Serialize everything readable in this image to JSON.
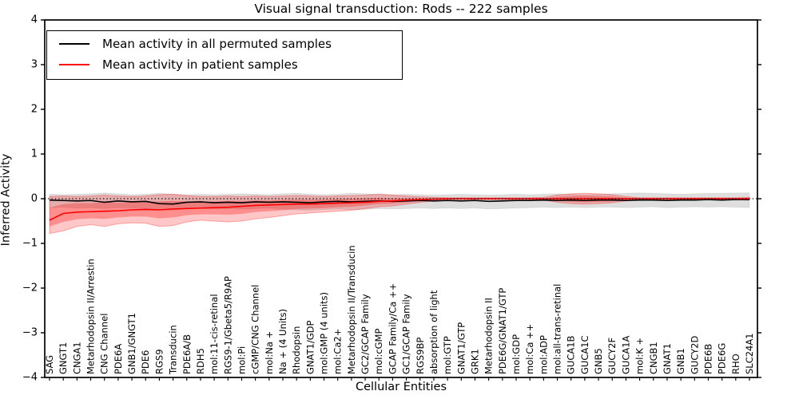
{
  "legend": {
    "permuted": "Mean activity in all permuted samples",
    "patient": "Mean activity in patient samples"
  },
  "chart_data": {
    "type": "line",
    "title": "Visual signal transduction: Rods -- 222 samples",
    "xlabel": "Cellular Entities",
    "ylabel": "Inferred Activity",
    "ylim": [
      -4,
      4
    ],
    "yticks": [
      4,
      3,
      2,
      1,
      0,
      -1,
      -2,
      -3,
      -4
    ],
    "grid": false,
    "legend_position": "upper left",
    "zero_line": {
      "style": "dotted",
      "color": "#000000"
    },
    "colors": {
      "permuted_line": "#000000",
      "patient_line": "#ff0000",
      "permuted_band_fill": "rgba(0,0,0,0.13)",
      "permuted_band_edge": "rgba(0,0,0,0.07)",
      "patient_band_outer_fill": "rgba(255,0,0,0.22)",
      "patient_band_outer_edge": "rgba(255,0,0,0.30)",
      "patient_band_inner_fill": "rgba(255,0,0,0.28)"
    },
    "categories": [
      "SAG",
      "GNGT1",
      "CNGA1",
      "Metarhodopsin II/Arrestin",
      "CNG Channel",
      "PDE6A",
      "GNB1/GNGT1",
      "PDE6",
      "RGS9",
      "Transducin",
      "PDE6A/B",
      "RDH5",
      "mol:11-cis-retinal",
      "RGS9-1/Gbeta5/R9AP",
      "mol:Pi",
      "cGMP/CNG Channel",
      "mol:Na +",
      "Na + (4 Units)",
      "Rhodopsin",
      "GNAT1/GDP",
      "mol:GMP (4 units)",
      "mol:Ca2+",
      "Metarhodopsin II/Transducin",
      "GC2/GCAP Family",
      "mol:cGMP",
      "GCAP Family/Ca ++",
      "GC1/GCAP Family",
      "RGS9BP",
      "absorption of light",
      "mol:GTP",
      "GNAT1/GTP",
      "GRK1",
      "Metarhodopsin II",
      "PDE6G/GNAT1/GTP",
      "mol:GDP",
      "mol:Ca ++",
      "mol:ADP",
      "mol:all-trans-retinal",
      "GUCA1B",
      "GUCA1C",
      "GNB5",
      "GUCY2F",
      "GUCA1A",
      "mol:K +",
      "CNGB1",
      "GNAT1",
      "GNB1",
      "GUCY2D",
      "PDE6B",
      "PDE6G",
      "RHO",
      "SLC24A1"
    ],
    "series": [
      {
        "name": "Mean activity in all permuted samples",
        "color": "#000000",
        "values": [
          -0.03,
          -0.04,
          -0.05,
          -0.04,
          -0.08,
          -0.05,
          -0.07,
          -0.06,
          -0.11,
          -0.12,
          -0.08,
          -0.07,
          -0.09,
          -0.08,
          -0.09,
          -0.07,
          -0.08,
          -0.07,
          -0.08,
          -0.09,
          -0.07,
          -0.06,
          -0.07,
          -0.06,
          -0.05,
          -0.06,
          -0.05,
          -0.04,
          -0.05,
          -0.04,
          -0.05,
          -0.04,
          -0.06,
          -0.05,
          -0.04,
          -0.04,
          -0.03,
          -0.04,
          -0.03,
          -0.04,
          -0.03,
          -0.03,
          -0.04,
          -0.03,
          -0.03,
          -0.04,
          -0.03,
          -0.03,
          -0.02,
          -0.03,
          -0.02,
          -0.02
        ]
      },
      {
        "name": "Mean activity in patient samples",
        "color": "#ff0000",
        "values": [
          -0.48,
          -0.33,
          -0.3,
          -0.29,
          -0.28,
          -0.27,
          -0.25,
          -0.24,
          -0.25,
          -0.23,
          -0.22,
          -0.21,
          -0.2,
          -0.19,
          -0.17,
          -0.15,
          -0.14,
          -0.13,
          -0.12,
          -0.12,
          -0.11,
          -0.1,
          -0.09,
          -0.08,
          -0.06,
          -0.05,
          -0.03,
          -0.02,
          -0.01,
          0,
          0,
          0,
          0,
          0,
          0,
          0,
          0,
          0,
          0,
          0,
          0,
          0,
          0,
          0,
          0,
          0,
          0,
          0,
          0,
          0,
          0,
          0
        ]
      }
    ],
    "bands": [
      {
        "name": "permuted-range",
        "hi": [
          0.1,
          0.09,
          0.1,
          0.11,
          0.13,
          0.11,
          0.09,
          0.1,
          0.12,
          0.1,
          0.09,
          0.1,
          0.09,
          0.1,
          0.11,
          0.1,
          0.09,
          0.11,
          0.12,
          0.1,
          0.09,
          0.1,
          0.12,
          0.11,
          0.1,
          0.09,
          0.1,
          0.09,
          0.08,
          0.09,
          0.1,
          0.09,
          0.08,
          0.09,
          0.1,
          0.09,
          0.1,
          0.11,
          0.1,
          0.09,
          0.1,
          0.11,
          0.12,
          0.13,
          0.12,
          0.11,
          0.1,
          0.11,
          0.12,
          0.12,
          0.13,
          0.13
        ],
        "lo": [
          -0.2,
          -0.19,
          -0.21,
          -0.2,
          -0.22,
          -0.2,
          -0.21,
          -0.22,
          -0.25,
          -0.26,
          -0.22,
          -0.21,
          -0.23,
          -0.22,
          -0.23,
          -0.22,
          -0.21,
          -0.23,
          -0.25,
          -0.26,
          -0.24,
          -0.23,
          -0.25,
          -0.24,
          -0.22,
          -0.23,
          -0.22,
          -0.21,
          -0.22,
          -0.21,
          -0.22,
          -0.21,
          -0.23,
          -0.22,
          -0.21,
          -0.2,
          -0.19,
          -0.2,
          -0.19,
          -0.2,
          -0.19,
          -0.19,
          -0.2,
          -0.19,
          -0.18,
          -0.2,
          -0.19,
          -0.18,
          -0.19,
          -0.18,
          -0.19,
          -0.2
        ]
      },
      {
        "name": "patient-range-outer",
        "hi": [
          0.05,
          0.06,
          0.05,
          0.06,
          0.08,
          0.06,
          0.05,
          0.06,
          0.09,
          0.1,
          0.07,
          0.05,
          0.05,
          0.06,
          0.05,
          0.06,
          0.05,
          0.06,
          0.07,
          0.06,
          0.05,
          0.06,
          0.07,
          0.08,
          0.1,
          0.08,
          0.06,
          0.04,
          0.03,
          0.02,
          0.02,
          0.02,
          0.02,
          0.02,
          0.02,
          0.02,
          0.03,
          0.08,
          0.11,
          0.12,
          0.11,
          0.09,
          0.05,
          0.02,
          0.02,
          0.02,
          0.02,
          0.02,
          0.02,
          0.02,
          0.02,
          0.03
        ],
        "lo": [
          -0.78,
          -0.72,
          -0.62,
          -0.58,
          -0.62,
          -0.56,
          -0.54,
          -0.55,
          -0.62,
          -0.6,
          -0.52,
          -0.48,
          -0.5,
          -0.52,
          -0.5,
          -0.45,
          -0.42,
          -0.38,
          -0.34,
          -0.32,
          -0.3,
          -0.28,
          -0.26,
          -0.22,
          -0.18,
          -0.16,
          -0.12,
          -0.08,
          -0.04,
          -0.02,
          -0.02,
          -0.02,
          -0.02,
          -0.02,
          -0.02,
          -0.02,
          -0.03,
          -0.08,
          -0.11,
          -0.12,
          -0.11,
          -0.09,
          -0.05,
          -0.02,
          -0.02,
          -0.02,
          -0.02,
          -0.02,
          -0.02,
          -0.02,
          -0.02,
          -0.03
        ]
      },
      {
        "name": "patient-range-inner",
        "hi": [
          -0.2,
          -0.12,
          -0.1,
          -0.1,
          -0.08,
          -0.09,
          -0.08,
          -0.07,
          -0.06,
          -0.05,
          -0.06,
          -0.07,
          -0.06,
          -0.05,
          -0.05,
          -0.04,
          -0.04,
          -0.03,
          -0.02,
          -0.02,
          -0.02,
          -0.01,
          0.0,
          0.01,
          0.02,
          0.01,
          0.01,
          0.01,
          0.01,
          0.01,
          0.01,
          0.01,
          0.01,
          0.01,
          0.01,
          0.01,
          0.01,
          0.04,
          0.06,
          0.07,
          0.06,
          0.05,
          0.02,
          0.01,
          0.01,
          0.01,
          0.01,
          0.01,
          0.01,
          0.01,
          0.01,
          0.01
        ],
        "lo": [
          -0.62,
          -0.52,
          -0.46,
          -0.44,
          -0.45,
          -0.42,
          -0.4,
          -0.4,
          -0.44,
          -0.42,
          -0.37,
          -0.35,
          -0.35,
          -0.36,
          -0.34,
          -0.3,
          -0.28,
          -0.26,
          -0.23,
          -0.22,
          -0.21,
          -0.19,
          -0.18,
          -0.15,
          -0.12,
          -0.11,
          -0.08,
          -0.05,
          -0.03,
          -0.01,
          -0.01,
          -0.01,
          -0.01,
          -0.01,
          -0.01,
          -0.01,
          -0.02,
          -0.05,
          -0.07,
          -0.08,
          -0.07,
          -0.06,
          -0.03,
          -0.01,
          -0.01,
          -0.01,
          -0.01,
          -0.01,
          -0.01,
          -0.01,
          -0.01,
          -0.01
        ]
      }
    ]
  }
}
